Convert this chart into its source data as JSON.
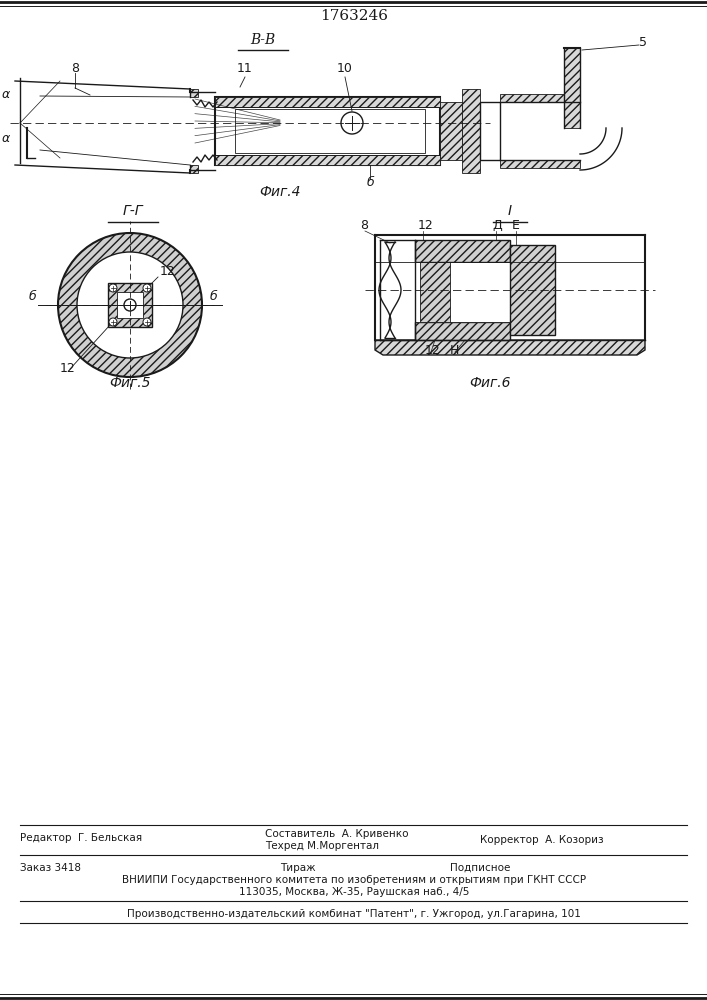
{
  "patent_number": "1763246",
  "fig4_label": "Фиг.4",
  "fig5_label": "Фиг.5",
  "fig6_label": "Фиг.6",
  "section_vv": "В-В",
  "section_gg": "Г-Г",
  "section_i": "I",
  "bg_color": "#ffffff",
  "line_color": "#1a1a1a",
  "footer": {
    "editor": "Редактор  Г. Бельская",
    "compiler": "Составитель  А. Кривенко",
    "techred": "Техред М.Моргентал",
    "corrector": "Корректор  А. Козориз",
    "order": "Заказ 3418",
    "tirazh": "Тираж",
    "podpisnoe": "Подписное",
    "vniiipi": "ВНИИПИ Государственного комитета по изобретениям и открытиям при ГКНТ СССР",
    "address": "113035, Москва, Ж-35, Раушская наб., 4/5",
    "plant": "Производственно-издательский комбинат \"Патент\", г. Ужгород, ул.Гагарина, 101"
  }
}
